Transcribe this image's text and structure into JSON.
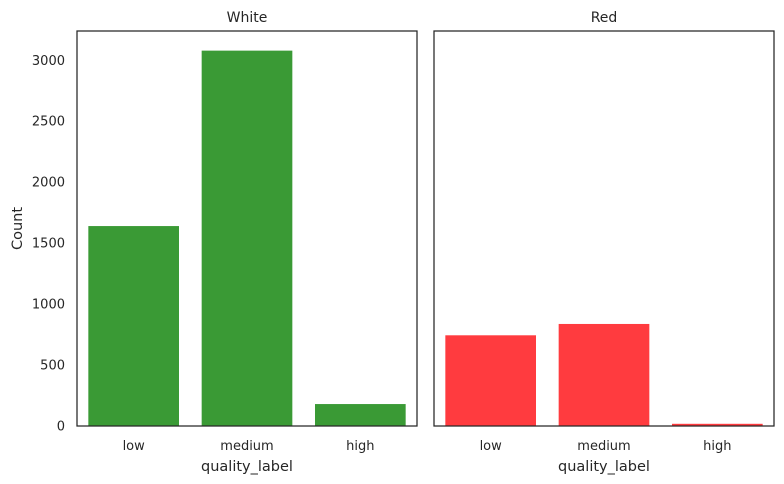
{
  "chart_data": [
    {
      "type": "bar",
      "title": "White",
      "categories": [
        "low",
        "medium",
        "high"
      ],
      "values": [
        1640,
        3079,
        180
      ],
      "color": "#3a9a35",
      "xlabel": "quality_label",
      "ylabel": "Count",
      "ylim": [
        0,
        3240
      ],
      "yticks": [
        0,
        500,
        1000,
        1500,
        2000,
        2500,
        3000
      ],
      "grid": false
    },
    {
      "type": "bar",
      "title": "Red",
      "categories": [
        "low",
        "medium",
        "high"
      ],
      "values": [
        744,
        837,
        18
      ],
      "color": "#ff3b3f",
      "xlabel": "quality_label",
      "ylabel": "",
      "ylim": [
        0,
        3240
      ],
      "yticks": [],
      "grid": false
    }
  ]
}
